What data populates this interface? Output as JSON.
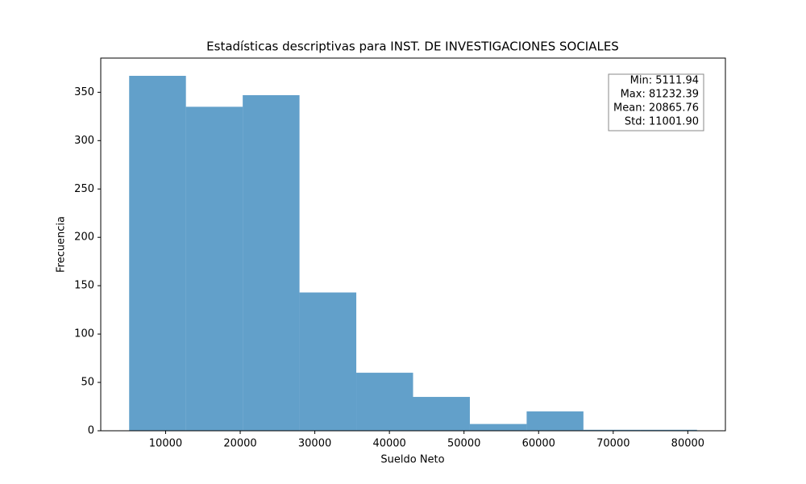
{
  "chart_data": {
    "type": "histogram",
    "title": "Estadísticas descriptivas para INST. DE INVESTIGACIONES SOCIALES",
    "xlabel": "Sueldo Neto",
    "ylabel": "Frecuencia",
    "bins": [
      5111.94,
      12723.985,
      20336.03,
      27948.075,
      35560.12,
      43172.165,
      50784.21,
      58396.255,
      66008.3,
      73620.345,
      81232.39
    ],
    "values": [
      367,
      335,
      347,
      143,
      60,
      35,
      7,
      20,
      1,
      1
    ],
    "color": "#1f77b4",
    "alpha": 0.7,
    "xlim": [
      1305.92,
      85038.41
    ],
    "xticks": [
      10000,
      20000,
      30000,
      40000,
      50000,
      60000,
      70000,
      80000
    ],
    "ylim": [
      0,
      385.35
    ],
    "yticks": [
      0,
      50,
      100,
      150,
      200,
      250,
      300,
      350
    ],
    "grid": false,
    "annotations": [
      "Min: 5111.94",
      "Max: 81232.39",
      "Mean: 20865.76",
      "Std: 11001.90"
    ],
    "annotation_corner": "upper right"
  }
}
